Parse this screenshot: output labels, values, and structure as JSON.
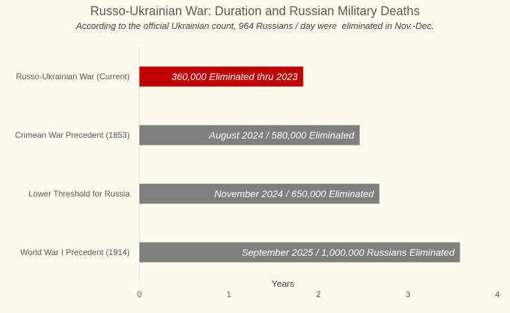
{
  "chart_data": {
    "type": "bar",
    "orientation": "horizontal",
    "title": "Russo-Ukrainian War: Duration and Russian Military Deaths",
    "subtitle": "According to the official Ukrainian count, 964 Russians / day were  eliminated in Nov.-Dec.",
    "xlabel": "Years",
    "ylabel": "",
    "xlim": [
      0,
      4
    ],
    "x_ticks": [
      "0",
      "1",
      "2",
      "3",
      "4"
    ],
    "grid": false,
    "legend": "none",
    "categories": [
      "Russo-Ukrainian War (Current)",
      "Crimean War Precedent (1853)",
      "Lower Threshold for Russia",
      "World War I Precedent (1914)"
    ],
    "values": [
      1.83,
      2.46,
      2.68,
      3.58
    ],
    "data_labels": [
      "360,000 Eliminated thru 2023",
      "August 2024 / 580,000 Eliminated",
      "November 2024 / 650,000 Eliminated",
      "September 2025 / 1,000,000 Russians Eliminated"
    ],
    "colors": [
      "#c00000",
      "#7f7f7f",
      "#7f7f7f",
      "#7f7f7f"
    ],
    "axis_color": "#d9d9d9",
    "text_color": "#595959",
    "background": "#fdfdef"
  }
}
